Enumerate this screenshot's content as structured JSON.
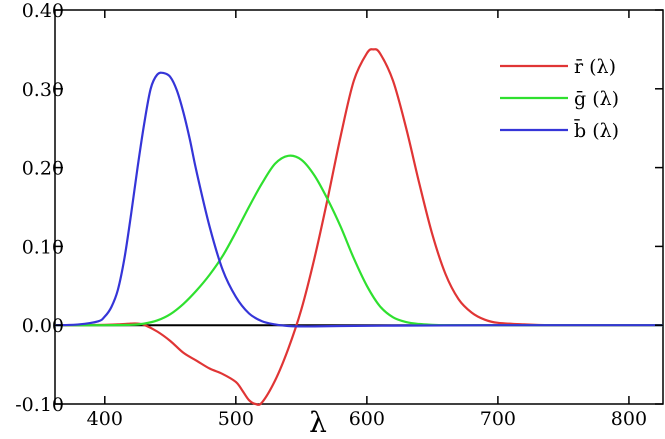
{
  "chart_data": {
    "type": "line",
    "title": "",
    "xlabel": "λ",
    "ylabel": "",
    "xlim": [
      362,
      826
    ],
    "ylim": [
      -0.1,
      0.4
    ],
    "grid": false,
    "legend_position": "top-right",
    "x_ticks": [
      {
        "value": 400,
        "label": "400"
      },
      {
        "value": 500,
        "label": "500"
      },
      {
        "value": 600,
        "label": "600"
      },
      {
        "value": 700,
        "label": "700"
      },
      {
        "value": 800,
        "label": "800"
      }
    ],
    "y_ticks": [
      {
        "value": 0.4,
        "label": "0.40"
      },
      {
        "value": 0.3,
        "label": "0.30"
      },
      {
        "value": 0.2,
        "label": "0.20"
      },
      {
        "value": 0.1,
        "label": "0.10"
      },
      {
        "value": 0.0,
        "label": "0.00"
      },
      {
        "value": -0.1,
        "label": "-0.10"
      }
    ],
    "baseline": 0,
    "series": [
      {
        "name": "r̄ (λ)",
        "color": "#e03535",
        "x": [
          362,
          380,
          400,
          410,
          420,
          425,
          430,
          440,
          450,
          460,
          470,
          480,
          490,
          500,
          505,
          510,
          515,
          520,
          530,
          540,
          550,
          560,
          570,
          580,
          590,
          600,
          605,
          610,
          620,
          630,
          640,
          650,
          660,
          670,
          680,
          690,
          700,
          720,
          740,
          780,
          826
        ],
        "y": [
          0,
          0,
          0.0005,
          0.001,
          0.002,
          0.002,
          0.0005,
          -0.008,
          -0.02,
          -0.035,
          -0.045,
          -0.055,
          -0.062,
          -0.072,
          -0.083,
          -0.095,
          -0.1,
          -0.098,
          -0.07,
          -0.03,
          0.02,
          0.085,
          0.16,
          0.24,
          0.31,
          0.345,
          0.35,
          0.345,
          0.31,
          0.25,
          0.18,
          0.115,
          0.065,
          0.033,
          0.016,
          0.007,
          0.003,
          0.001,
          0,
          0,
          0
        ]
      },
      {
        "name": "ḡ (λ)",
        "color": "#2fe02f",
        "x": [
          362,
          400,
          420,
          430,
          440,
          450,
          460,
          470,
          480,
          490,
          500,
          510,
          520,
          530,
          540,
          550,
          560,
          570,
          580,
          590,
          600,
          610,
          620,
          630,
          640,
          650,
          660,
          670,
          700,
          826
        ],
        "y": [
          0,
          0,
          0.0005,
          0.002,
          0.006,
          0.014,
          0.027,
          0.044,
          0.064,
          0.088,
          0.118,
          0.15,
          0.18,
          0.205,
          0.215,
          0.21,
          0.19,
          0.16,
          0.125,
          0.085,
          0.05,
          0.024,
          0.01,
          0.004,
          0.0015,
          0.0005,
          0,
          0,
          0,
          0
        ]
      },
      {
        "name": "b̄ (λ)",
        "color": "#3535d8",
        "x": [
          362,
          380,
          395,
          400,
          405,
          410,
          415,
          420,
          425,
          430,
          435,
          440,
          445,
          450,
          455,
          460,
          465,
          470,
          480,
          490,
          500,
          510,
          520,
          530,
          540,
          550,
          560,
          580,
          620,
          700,
          826
        ],
        "y": [
          0,
          0.001,
          0.005,
          0.011,
          0.023,
          0.045,
          0.085,
          0.14,
          0.2,
          0.255,
          0.3,
          0.318,
          0.32,
          0.315,
          0.298,
          0.27,
          0.235,
          0.195,
          0.125,
          0.07,
          0.036,
          0.015,
          0.005,
          0.001,
          -0.001,
          -0.0015,
          -0.0015,
          -0.001,
          -0.0005,
          0,
          0
        ]
      }
    ]
  }
}
